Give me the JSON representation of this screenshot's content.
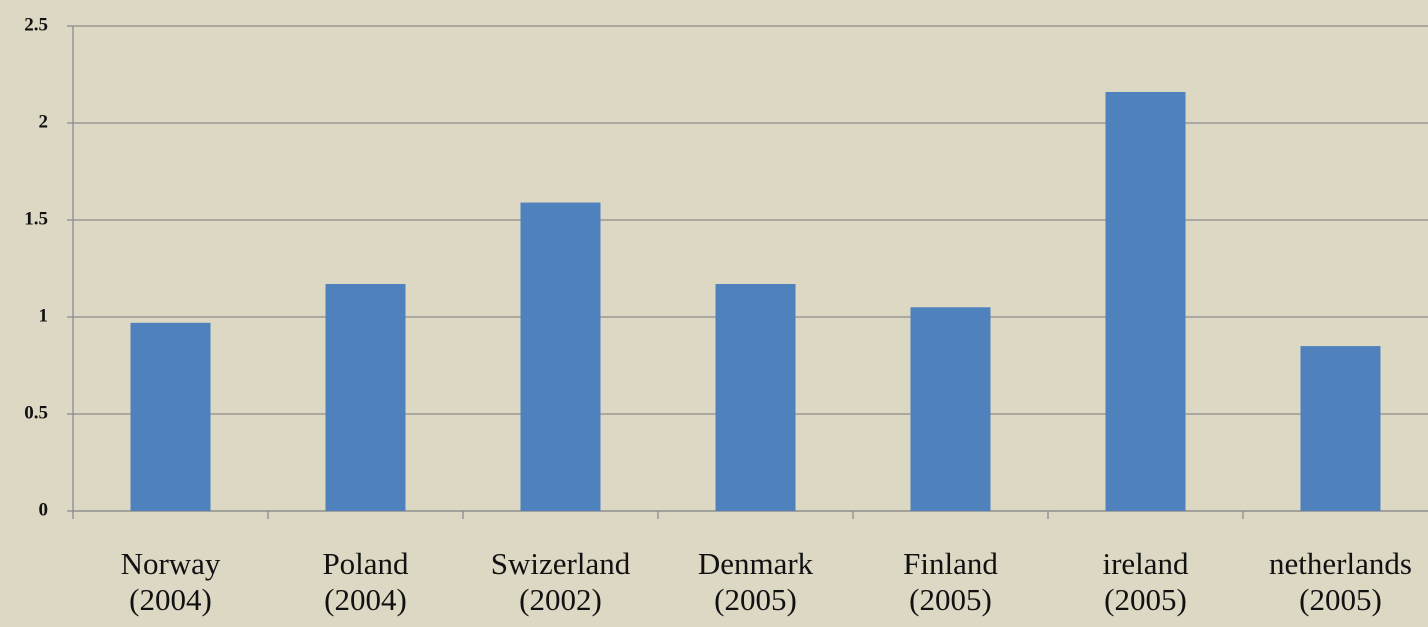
{
  "chart_data": {
    "type": "bar",
    "categories": [
      "Norway (2004)",
      "Poland (2004)",
      "Swizerland (2002)",
      "Denmark (2005)",
      "Finland (2005)",
      "ireland (2005)",
      "netherlands (2005)"
    ],
    "values": [
      0.97,
      1.17,
      1.59,
      1.17,
      1.05,
      2.16,
      0.85
    ],
    "color": "#4f81bd",
    "ylim": [
      0,
      2.5
    ],
    "yticks": [
      0,
      0.5,
      1,
      1.5,
      2,
      2.5
    ],
    "grid": true
  }
}
